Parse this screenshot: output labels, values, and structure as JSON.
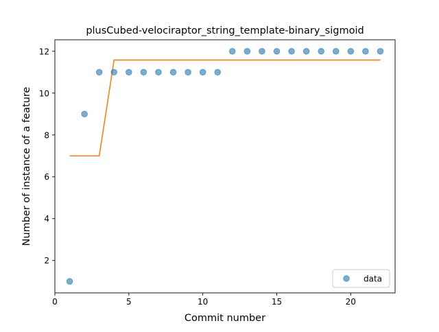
{
  "chart_data": {
    "type": "scatter",
    "title": "plusCubed-velociraptor_string_template-binary_sigmoid",
    "xlabel": "Commit number",
    "ylabel": "Number of instance of a feature",
    "xlim": [
      0,
      23
    ],
    "ylim": [
      0.45,
      12.55
    ],
    "xticks": [
      0,
      5,
      10,
      15,
      20
    ],
    "yticks": [
      2,
      4,
      6,
      8,
      10,
      12
    ],
    "grid": false,
    "legend_position": "lower-right",
    "series": [
      {
        "name": "data",
        "kind": "scatter",
        "color": "#1f77b4",
        "x": [
          1,
          2,
          3,
          4,
          5,
          6,
          7,
          8,
          9,
          10,
          11,
          12,
          13,
          14,
          15,
          16,
          17,
          18,
          19,
          20,
          21,
          22
        ],
        "y": [
          1,
          9,
          11,
          11,
          11,
          11,
          11,
          11,
          11,
          11,
          11,
          12,
          12,
          12,
          12,
          12,
          12,
          12,
          12,
          12,
          12,
          12
        ]
      },
      {
        "kind": "line",
        "color": "#ff7f0e",
        "x": [
          1,
          2,
          3,
          4,
          5,
          6,
          7,
          8,
          9,
          10,
          11,
          12,
          13,
          14,
          15,
          16,
          17,
          18,
          19,
          20,
          21,
          22
        ],
        "y": [
          7,
          7,
          7,
          11.58,
          11.58,
          11.58,
          11.58,
          11.58,
          11.58,
          11.58,
          11.58,
          11.58,
          11.58,
          11.58,
          11.58,
          11.58,
          11.58,
          11.58,
          11.58,
          11.58,
          11.58,
          11.58
        ]
      }
    ]
  }
}
